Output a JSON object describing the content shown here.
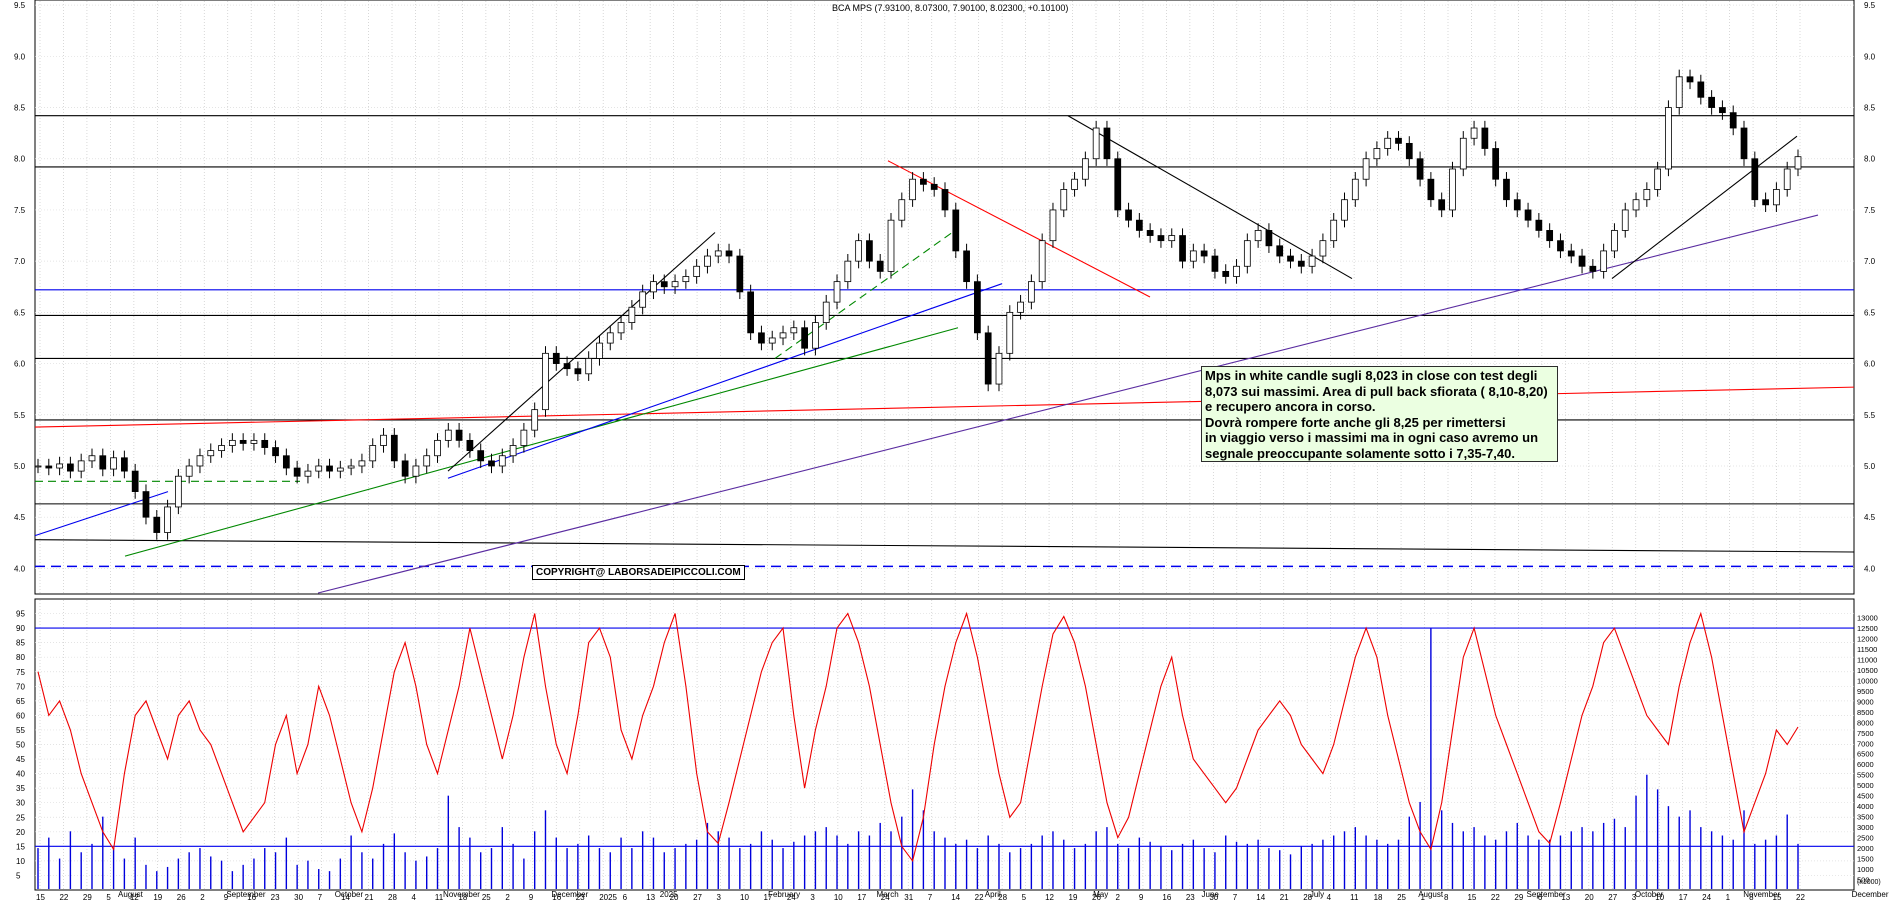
{
  "chart_data": [
    {
      "type": "candlestick",
      "title": "BCA MPS (7.93100, 8.07300, 7.90100, 8.02300, +0.10100)",
      "ylim": [
        3.75,
        9.55
      ],
      "y_ticks": [
        "4.0",
        "4.5",
        "5.0",
        "5.5",
        "6.0",
        "6.5",
        "7.0",
        "7.5",
        "8.0",
        "8.5",
        "9.0",
        "9.5"
      ],
      "y_tick_values": [
        4.0,
        4.5,
        5.0,
        5.5,
        6.0,
        6.5,
        7.0,
        7.5,
        8.0,
        8.5,
        9.0,
        9.5
      ],
      "grid": true,
      "annotation": {
        "lines": [
          "Mps in white candle sugli 8,023 in close con test degli",
          "8,073 sui massimi. Area di pull back sfiorata ( 8,10-8,20)",
          "e recupero ancora in corso.",
          "Dovrà rompere forte anche gli 8,25 per rimettersi",
          "in viaggio verso i massimi ma in ogni caso avremo un",
          "segnale preoccupante solamente sotto i 7,35-7,40."
        ]
      },
      "copyright": "COPYRIGHT@ LABORSADEIPICCOLI.COM",
      "horizontal_levels": [
        {
          "y": 8.42,
          "color": "#000000"
        },
        {
          "y": 7.92,
          "color": "#000000"
        },
        {
          "y": 6.72,
          "color": "#0000ee"
        },
        {
          "y": 6.47,
          "color": "#000000"
        },
        {
          "y": 6.05,
          "color": "#000000"
        },
        {
          "y": 5.45,
          "color": "#000000"
        },
        {
          "y": 4.63,
          "color": "#000000"
        },
        {
          "y": 4.02,
          "color": "#0000ee",
          "dashed": true
        }
      ],
      "close_series": [
        5.0,
        4.98,
        5.02,
        4.95,
        5.05,
        5.1,
        4.97,
        5.08,
        4.95,
        4.75,
        4.5,
        4.35,
        4.6,
        4.9,
        5.0,
        5.1,
        5.15,
        5.2,
        5.25,
        5.22,
        5.25,
        5.18,
        5.1,
        4.98,
        4.9,
        4.95,
        5.0,
        4.95,
        4.98,
        5.0,
        5.05,
        5.2,
        5.3,
        5.05,
        4.9,
        5.0,
        5.1,
        5.25,
        5.35,
        5.25,
        5.15,
        5.05,
        5.0,
        5.1,
        5.2,
        5.35,
        5.55,
        6.1,
        6.0,
        5.95,
        5.9,
        6.05,
        6.2,
        6.3,
        6.4,
        6.55,
        6.7,
        6.8,
        6.75,
        6.8,
        6.85,
        6.95,
        7.05,
        7.1,
        7.05,
        6.7,
        6.3,
        6.2,
        6.25,
        6.3,
        6.35,
        6.15,
        6.4,
        6.6,
        6.8,
        7.0,
        7.2,
        7.0,
        6.9,
        7.4,
        7.6,
        7.8,
        7.75,
        7.7,
        7.5,
        7.1,
        6.8,
        6.3,
        5.8,
        6.1,
        6.5,
        6.6,
        6.8,
        7.2,
        7.5,
        7.7,
        7.8,
        8.0,
        8.3,
        8.0,
        7.5,
        7.4,
        7.3,
        7.25,
        7.2,
        7.25,
        7.0,
        7.1,
        7.05,
        6.9,
        6.85,
        6.95,
        7.2,
        7.3,
        7.15,
        7.05,
        7.0,
        6.95,
        7.05,
        7.2,
        7.4,
        7.6,
        7.8,
        8.0,
        8.1,
        8.2,
        8.15,
        8.0,
        7.8,
        7.6,
        7.5,
        7.9,
        8.2,
        8.3,
        8.1,
        7.8,
        7.6,
        7.5,
        7.4,
        7.3,
        7.2,
        7.1,
        7.05,
        6.95,
        6.9,
        7.1,
        7.3,
        7.5,
        7.6,
        7.7,
        7.9,
        8.5,
        8.8,
        8.75,
        8.6,
        8.5,
        8.45,
        8.3,
        8.0,
        7.6,
        7.55,
        7.7,
        7.9,
        8.02
      ],
      "x_date_labels": [
        "15",
        "22",
        "29",
        "5",
        "12",
        "19",
        "26",
        "2",
        "9",
        "16",
        "23",
        "30",
        "7",
        "14",
        "21",
        "28",
        "4",
        "11",
        "18",
        "25",
        "2",
        "9",
        "16",
        "23",
        "2025",
        "6",
        "13",
        "20",
        "27",
        "3",
        "10",
        "17",
        "24",
        "3",
        "10",
        "17",
        "24",
        "31",
        "7",
        "14",
        "22",
        "28",
        "5",
        "12",
        "19",
        "26",
        "2",
        "9",
        "16",
        "23",
        "30",
        "7",
        "14",
        "21",
        "28",
        "4",
        "11",
        "18",
        "25",
        "1",
        "8",
        "15",
        "22",
        "29",
        "6",
        "13",
        "20",
        "27",
        "3",
        "10",
        "17",
        "24",
        "1",
        "8",
        "15",
        "22"
      ],
      "x_month_labels": [
        "August",
        "September",
        "October",
        "November",
        "December",
        "2025",
        "February",
        "March",
        "April",
        "May",
        "June",
        "July",
        "August",
        "September",
        "October",
        "November",
        "December"
      ]
    },
    {
      "type": "line+bar",
      "title": "",
      "ylim": [
        0,
        100
      ],
      "y_ticks": [
        "5",
        "10",
        "15",
        "20",
        "25",
        "30",
        "35",
        "40",
        "45",
        "50",
        "55",
        "60",
        "65",
        "70",
        "75",
        "80",
        "85",
        "90",
        "95"
      ],
      "y_tick_values": [
        5,
        10,
        15,
        20,
        25,
        30,
        35,
        40,
        45,
        50,
        55,
        60,
        65,
        70,
        75,
        80,
        85,
        90,
        95
      ],
      "right_ticks": [
        "500",
        "1000",
        "1500",
        "2000",
        "2500",
        "3000",
        "3500",
        "4000",
        "4500",
        "5000",
        "5500",
        "6000",
        "6500",
        "7000",
        "7500",
        "8000",
        "8500",
        "9000",
        "9500",
        "10000",
        "10500",
        "11000",
        "11500",
        "12000",
        "12500",
        "13000"
      ],
      "right_tick_values": [
        500,
        1000,
        1500,
        2000,
        2500,
        3000,
        3500,
        4000,
        4500,
        5000,
        5500,
        6000,
        6500,
        7000,
        7500,
        8000,
        8500,
        9000,
        9500,
        10000,
        10500,
        11000,
        11500,
        12000,
        12500,
        13000
      ],
      "right_unit": "(x1000)",
      "reference_levels": [
        90,
        15
      ],
      "oscillator_series": [
        75,
        60,
        65,
        55,
        40,
        30,
        20,
        14,
        40,
        60,
        65,
        55,
        45,
        60,
        65,
        55,
        50,
        40,
        30,
        20,
        25,
        30,
        50,
        60,
        40,
        50,
        70,
        60,
        45,
        30,
        20,
        35,
        55,
        75,
        85,
        70,
        50,
        40,
        55,
        70,
        90,
        75,
        60,
        45,
        60,
        80,
        95,
        70,
        50,
        40,
        60,
        85,
        90,
        80,
        55,
        45,
        60,
        70,
        85,
        95,
        70,
        40,
        20,
        16,
        30,
        45,
        60,
        75,
        85,
        90,
        60,
        35,
        55,
        70,
        90,
        95,
        85,
        70,
        50,
        30,
        15,
        10,
        25,
        50,
        70,
        85,
        95,
        80,
        60,
        40,
        25,
        30,
        50,
        70,
        88,
        94,
        85,
        70,
        50,
        30,
        18,
        25,
        40,
        55,
        70,
        80,
        60,
        45,
        40,
        35,
        30,
        35,
        45,
        55,
        60,
        65,
        60,
        50,
        45,
        40,
        50,
        65,
        80,
        90,
        80,
        60,
        45,
        30,
        20,
        14,
        30,
        55,
        80,
        90,
        75,
        60,
        50,
        40,
        30,
        20,
        16,
        30,
        45,
        60,
        70,
        85,
        90,
        80,
        70,
        60,
        55,
        50,
        70,
        85,
        95,
        80,
        60,
        40,
        20,
        30,
        40,
        55,
        50,
        56
      ],
      "volume_series": [
        2000,
        2500,
        1500,
        2800,
        1800,
        2200,
        3500,
        2000,
        1500,
        2500,
        1200,
        900,
        1100,
        1500,
        1800,
        2000,
        1600,
        1400,
        900,
        1200,
        1500,
        2000,
        1800,
        2500,
        1200,
        1400,
        1000,
        900,
        1500,
        2600,
        1800,
        1500,
        2200,
        2700,
        1800,
        1400,
        1600,
        2000,
        4500,
        3000,
        2500,
        1800,
        2000,
        3000,
        2200,
        1500,
        2800,
        3800,
        2500,
        2000,
        2200,
        2600,
        2000,
        1800,
        2500,
        2000,
        2800,
        2500,
        1800,
        2000,
        2200,
        2400,
        3200,
        2800,
        2500,
        2000,
        2200,
        2800,
        2400,
        2000,
        2300,
        2600,
        2800,
        3000,
        2600,
        2200,
        2800,
        2600,
        3200,
        2800,
        3500,
        4800,
        3800,
        2800,
        2500,
        2200,
        2400,
        2000,
        2600,
        2200,
        1800,
        2000,
        2200,
        2600,
        2800,
        2400,
        2000,
        2200,
        2800,
        3000,
        2200,
        2000,
        2500,
        2300,
        2100,
        1900,
        2200,
        2400,
        2000,
        1800,
        2600,
        2300,
        2200,
        2400,
        2000,
        1900,
        1700,
        2100,
        2200,
        2400,
        2600,
        2800,
        3000,
        2600,
        2400,
        2200,
        2400,
        3500,
        4200,
        12500,
        3800,
        3200,
        2800,
        3000,
        2600,
        2400,
        2800,
        3200,
        2600,
        2400,
        2400,
        2600,
        2800,
        3000,
        2800,
        3200,
        3400,
        3000,
        4500,
        5500,
        4800,
        4000,
        3500,
        3800,
        3000,
        2800,
        2600,
        2400,
        3800,
        2200,
        2400,
        2600,
        3600,
        2200
      ]
    }
  ]
}
